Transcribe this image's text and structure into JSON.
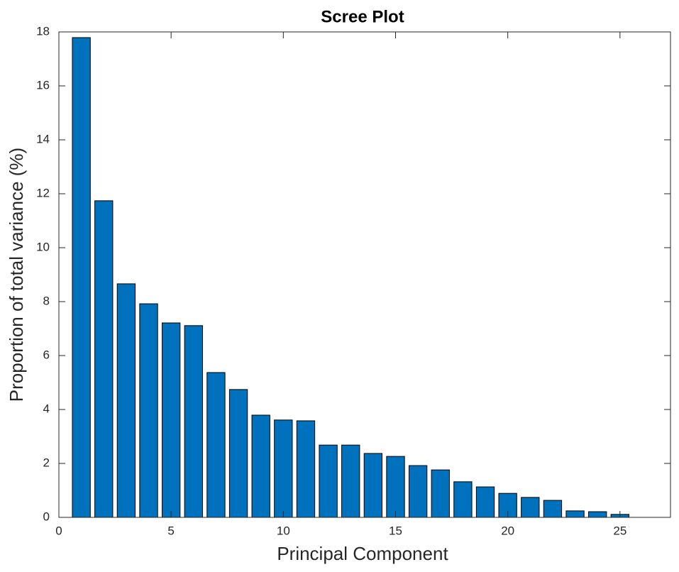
{
  "chart_data": {
    "type": "bar",
    "title": "Scree Plot",
    "xlabel": "Principal Component",
    "ylabel": "Proportion of total variance (%)",
    "x": [
      1,
      2,
      3,
      4,
      5,
      6,
      7,
      8,
      9,
      10,
      11,
      12,
      13,
      14,
      15,
      16,
      17,
      18,
      19,
      20,
      21,
      22,
      23,
      24,
      25
    ],
    "values": [
      17.79,
      11.74,
      8.66,
      7.92,
      7.21,
      7.11,
      5.37,
      4.74,
      3.79,
      3.61,
      3.58,
      2.68,
      2.68,
      2.37,
      2.26,
      1.92,
      1.76,
      1.32,
      1.13,
      0.89,
      0.74,
      0.63,
      0.24,
      0.21,
      0.11
    ],
    "color": "#0072bd",
    "xlim": [
      0,
      27.25
    ],
    "xticks": [
      0,
      5,
      10,
      15,
      20,
      25
    ],
    "ylim": [
      0,
      18
    ],
    "yticks": [
      0,
      2,
      4,
      6,
      8,
      10,
      12,
      14,
      16,
      18
    ]
  }
}
